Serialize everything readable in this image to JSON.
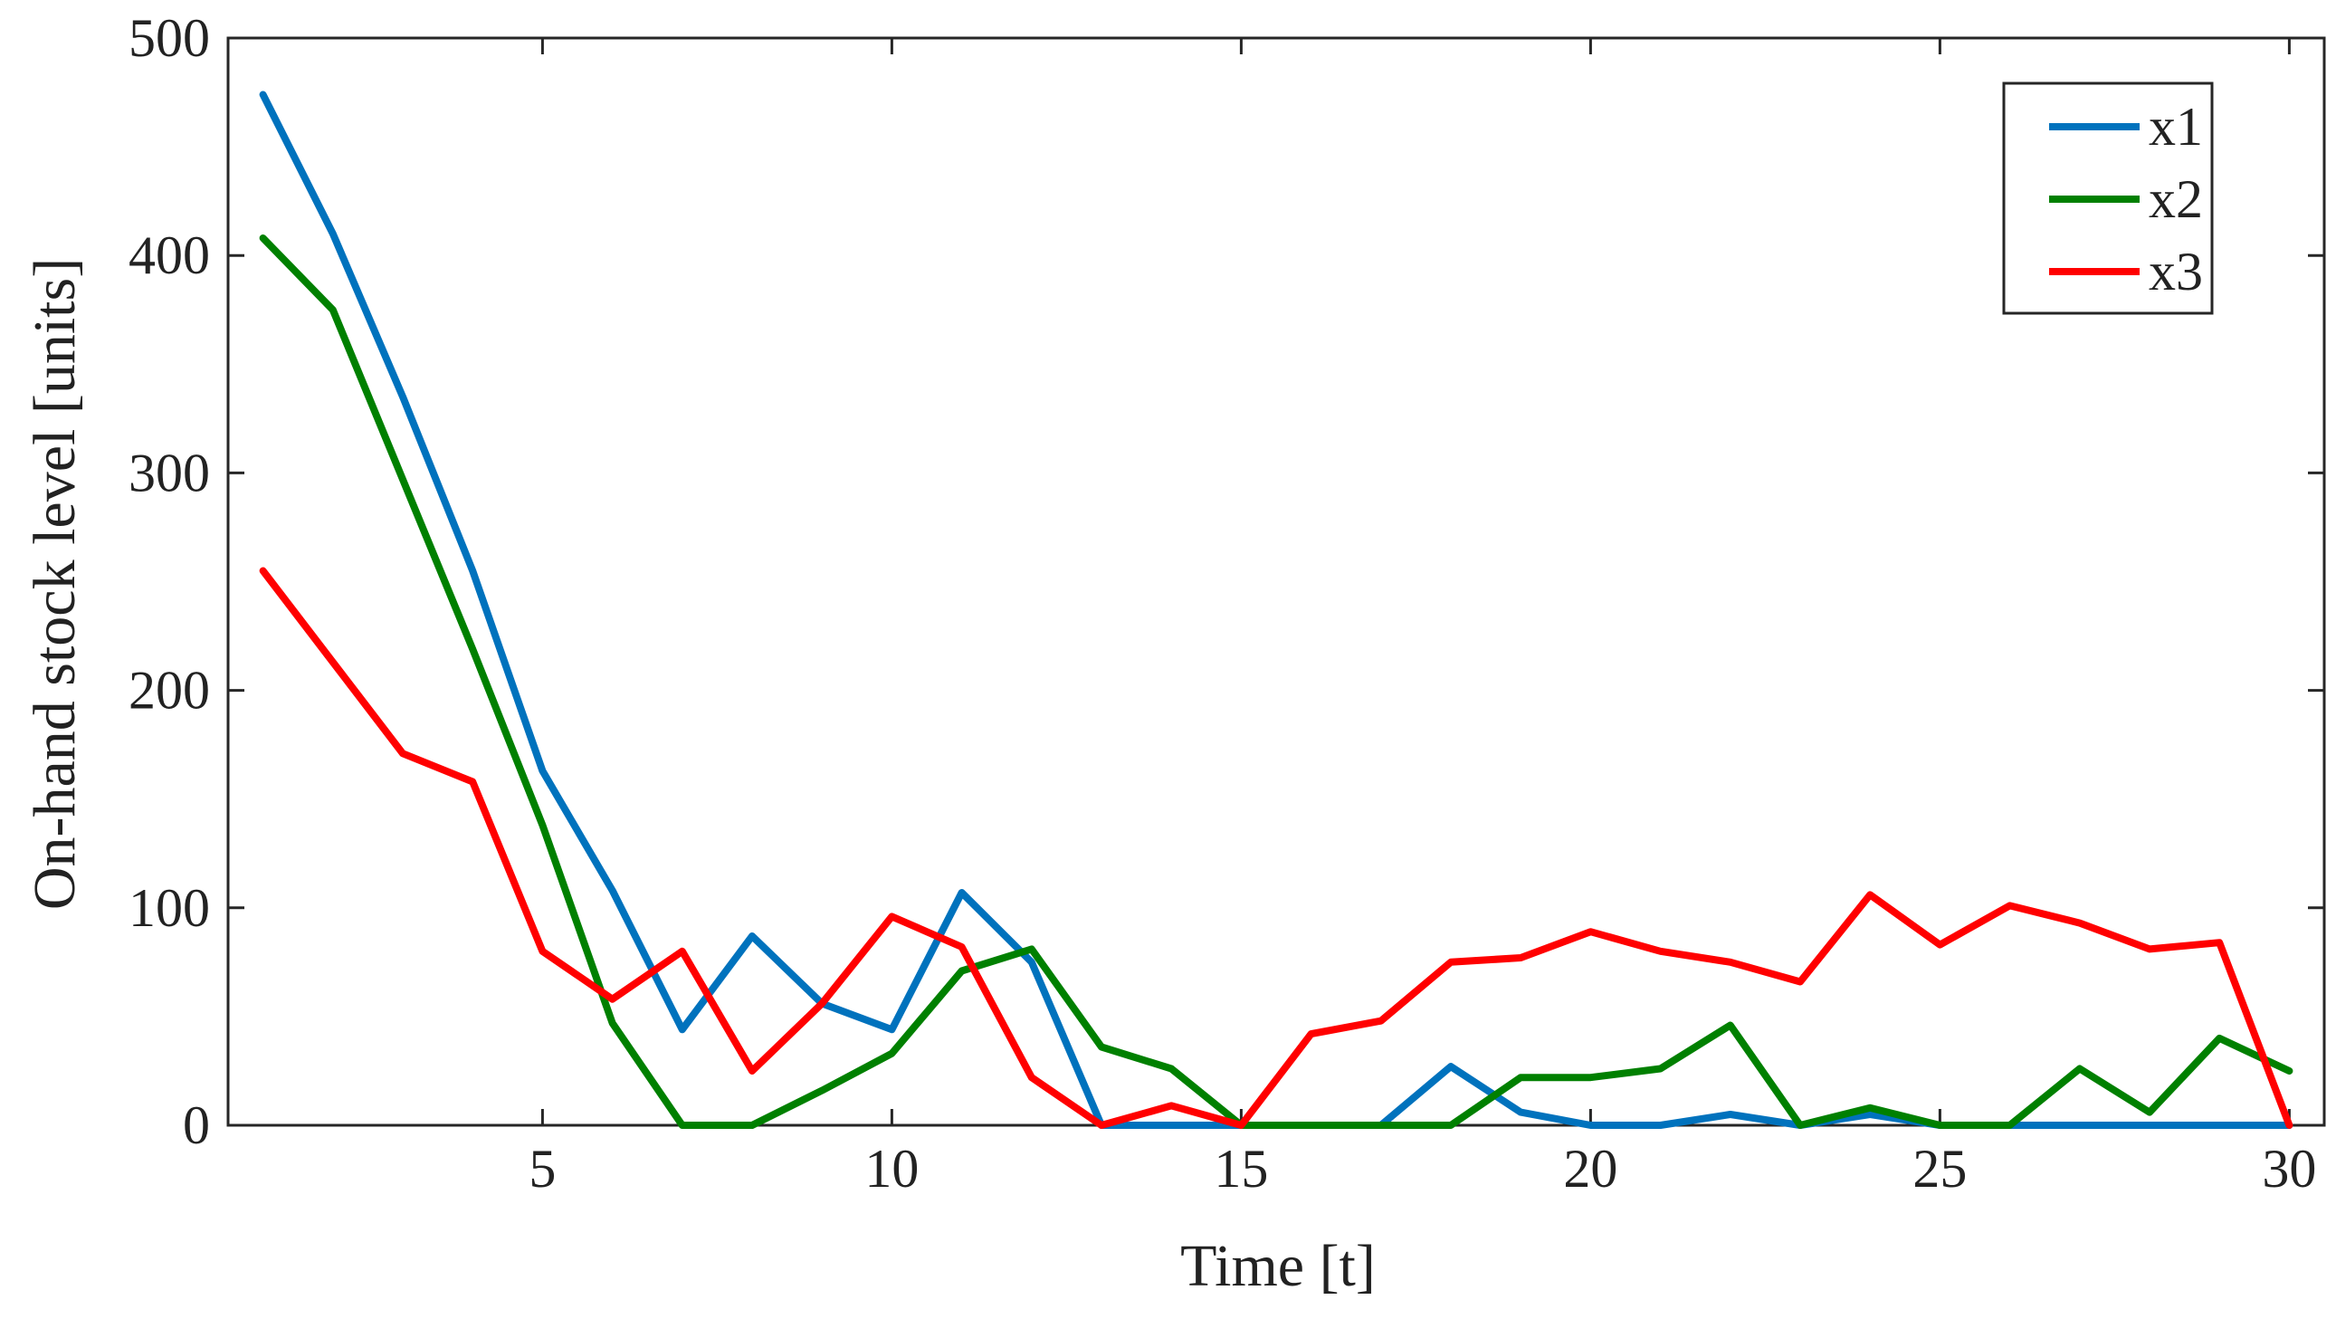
{
  "chart_data": {
    "type": "line",
    "title": "",
    "xlabel": "Time [t]",
    "ylabel": "On-hand stock level [units]",
    "xlim": [
      0.5,
      30.5
    ],
    "ylim": [
      0,
      500
    ],
    "xticks": [
      5,
      10,
      15,
      20,
      25,
      30
    ],
    "yticks": [
      0,
      100,
      200,
      300,
      400,
      500
    ],
    "grid": false,
    "legend_position": "top-right",
    "x": [
      1,
      2,
      3,
      4,
      5,
      6,
      7,
      8,
      9,
      10,
      11,
      12,
      13,
      14,
      15,
      16,
      17,
      18,
      19,
      20,
      21,
      22,
      23,
      24,
      25,
      26,
      27,
      28,
      29,
      30
    ],
    "series": [
      {
        "name": "x1",
        "color": "#0072BD",
        "values": [
          474,
          410,
          335,
          255,
          163,
          108,
          44,
          87,
          56,
          44,
          107,
          75,
          0,
          0,
          0,
          0,
          0,
          27,
          6,
          0,
          0,
          5,
          0,
          5,
          0,
          0,
          0,
          0,
          0,
          0
        ]
      },
      {
        "name": "x2",
        "color": "#008000",
        "values": [
          408,
          375,
          297,
          219,
          138,
          47,
          0,
          0,
          16,
          33,
          71,
          81,
          36,
          26,
          0,
          0,
          0,
          0,
          22,
          22,
          26,
          46,
          0,
          8,
          0,
          0,
          26,
          6,
          40,
          25
        ]
      },
      {
        "name": "x3",
        "color": "#FF0000",
        "values": [
          255,
          213,
          171,
          158,
          80,
          58,
          80,
          25,
          56,
          96,
          82,
          22,
          0,
          9,
          0,
          42,
          48,
          75,
          77,
          89,
          80,
          75,
          66,
          106,
          83,
          101,
          93,
          81,
          84,
          0
        ]
      }
    ]
  }
}
